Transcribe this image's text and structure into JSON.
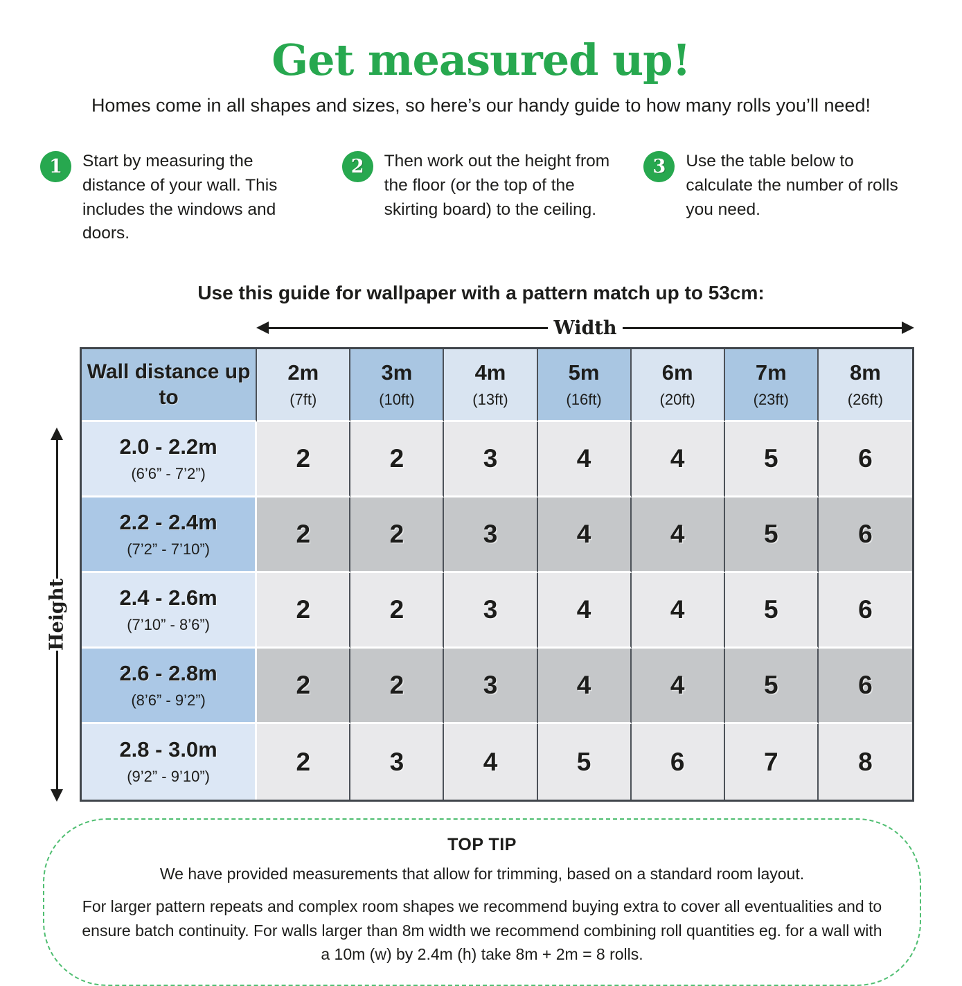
{
  "header": {
    "title": "Get measured up!",
    "subtitle": "Homes come in all shapes and sizes, so here’s our handy guide to how many rolls you’ll need!"
  },
  "steps": [
    {
      "number": "1",
      "text": "Start by measuring the distance of your wall. This includes the windows and doors."
    },
    {
      "number": "2",
      "text": "Then work out the height from the floor (or the top of the skirting board) to the ceiling."
    },
    {
      "number": "3",
      "text": "Use the table below to calculate the number of rolls you need."
    }
  ],
  "guide": {
    "heading": "Use this guide for wallpaper with a pattern match up to 53cm:",
    "width_label": "Width",
    "height_label": "Height"
  },
  "table": {
    "corner_header": "Wall distance up to",
    "columns": [
      {
        "main": "2m",
        "sub": "(7ft)"
      },
      {
        "main": "3m",
        "sub": "(10ft)"
      },
      {
        "main": "4m",
        "sub": "(13ft)"
      },
      {
        "main": "5m",
        "sub": "(16ft)"
      },
      {
        "main": "6m",
        "sub": "(20ft)"
      },
      {
        "main": "7m",
        "sub": "(23ft)"
      },
      {
        "main": "8m",
        "sub": "(26ft)"
      }
    ],
    "rows": [
      {
        "main": "2.0 - 2.2m",
        "sub": "(6’6” - 7’2”)",
        "values": [
          2,
          2,
          3,
          4,
          4,
          5,
          6
        ]
      },
      {
        "main": "2.2 - 2.4m",
        "sub": "(7’2” - 7’10”)",
        "values": [
          2,
          2,
          3,
          4,
          4,
          5,
          6
        ]
      },
      {
        "main": "2.4 - 2.6m",
        "sub": "(7’10” - 8’6”)",
        "values": [
          2,
          2,
          3,
          4,
          4,
          5,
          6
        ]
      },
      {
        "main": "2.6 - 2.8m",
        "sub": "(8’6” - 9’2”)",
        "values": [
          2,
          2,
          3,
          4,
          4,
          5,
          6
        ]
      },
      {
        "main": "2.8 - 3.0m",
        "sub": "(9’2” - 9’10”)",
        "values": [
          2,
          3,
          4,
          5,
          6,
          7,
          8
        ]
      }
    ]
  },
  "top_tip": {
    "heading": "TOP TIP",
    "line1": "We have provided measurements that allow for trimming, based on a standard room layout.",
    "line2": "For larger pattern repeats and complex room shapes we recommend buying extra to cover all eventualities and to ensure batch continuity. For walls larger than 8m width we recommend combining roll quantities eg. for a wall with a 10m (w) by 2.4m (h) take 8m + 2m = 8 rolls."
  },
  "colors": {
    "brand_green": "#27a84f",
    "dashed_border_green": "#4fbe71",
    "column_header_light": "#d9e4f1",
    "column_header_medium": "#a9c6e2",
    "row_header_light": "#dce7f5",
    "row_header_medium": "#abc8e6",
    "data_cell_light": "#e9e9eb",
    "data_cell_dark": "#c5c7c9"
  }
}
